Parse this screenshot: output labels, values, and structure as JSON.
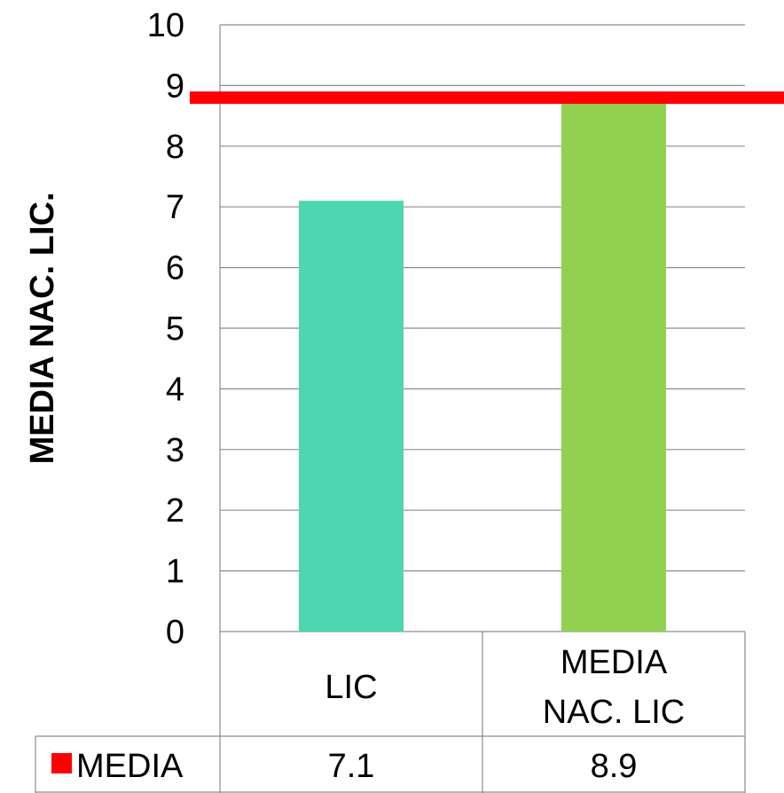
{
  "chart_data": {
    "type": "bar",
    "ylabel": "MEDIA  NAC. LIC.",
    "ylim": [
      0,
      10
    ],
    "yticks": [
      "0",
      "1",
      "2",
      "3",
      "4",
      "5",
      "6",
      "7",
      "8",
      "9",
      "10"
    ],
    "grid": true,
    "categories": [
      {
        "lines": [
          "LIC"
        ]
      },
      {
        "lines": [
          "MEDIA",
          "NAC. LIC"
        ]
      }
    ],
    "values": [
      7.1,
      8.9
    ],
    "bar_colors": [
      "#4dd6b0",
      "#92d050"
    ],
    "reference_line": {
      "value": 8.8,
      "color": "#ff0000"
    },
    "data_table": {
      "series_name": "MEDIA",
      "series_color": "#ff0000",
      "cells": [
        "7.1",
        "8.9"
      ]
    }
  }
}
